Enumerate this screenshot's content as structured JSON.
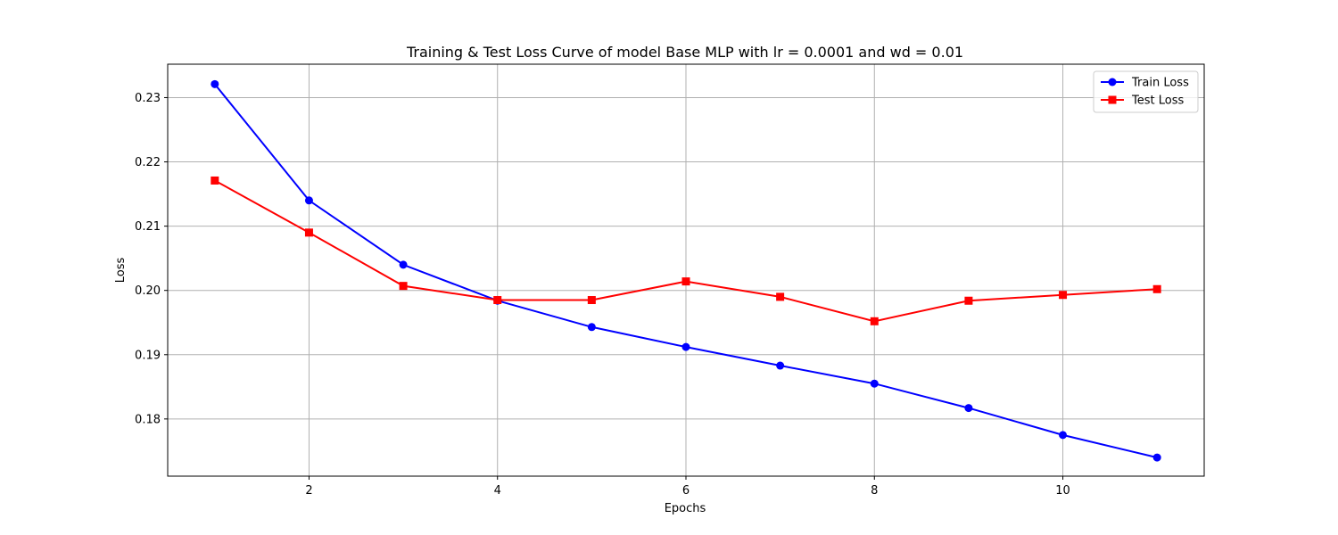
{
  "chart_data": {
    "type": "line",
    "title": "Training & Test Loss Curve of model Base MLP with lr = 0.0001 and wd = 0.01",
    "xlabel": "Epochs",
    "ylabel": "Loss",
    "xlim": [
      0.5,
      11.5
    ],
    "ylim": [
      0.1711,
      0.2352
    ],
    "xticks": [
      2,
      4,
      6,
      8,
      10
    ],
    "xtick_labels": [
      "2",
      "4",
      "6",
      "8",
      "10"
    ],
    "yticks": [
      0.18,
      0.19,
      0.2,
      0.21,
      0.22,
      0.23
    ],
    "ytick_labels": [
      "0.18",
      "0.19",
      "0.20",
      "0.21",
      "0.22",
      "0.23"
    ],
    "grid": true,
    "legend_position": "top-right",
    "x": [
      1,
      2,
      3,
      4,
      5,
      6,
      7,
      8,
      9,
      10,
      11
    ],
    "series": [
      {
        "name": "Train Loss",
        "color": "#0000ff",
        "marker": "circle",
        "values": [
          0.2321,
          0.214,
          0.204,
          0.1984,
          0.1943,
          0.1912,
          0.1883,
          0.1855,
          0.1817,
          0.1775,
          0.174
        ]
      },
      {
        "name": "Test Loss",
        "color": "#ff0000",
        "marker": "square",
        "values": [
          0.2171,
          0.209,
          0.2007,
          0.1985,
          0.1985,
          0.2014,
          0.199,
          0.1952,
          0.1984,
          0.1993,
          0.2002
        ]
      }
    ]
  }
}
